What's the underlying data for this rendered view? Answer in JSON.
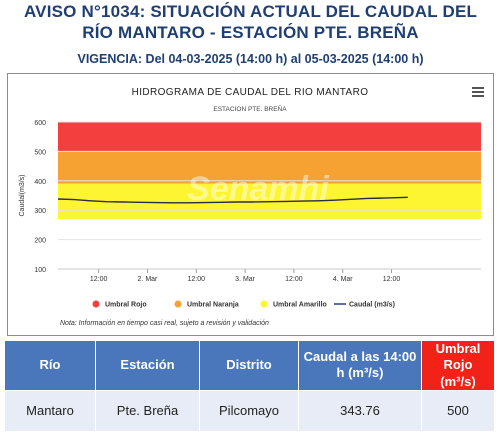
{
  "header": {
    "line1": "AVISO N°1034: SITUACIÓN ACTUAL DEL CAUDAL DEL",
    "line2": "RÍO MANTARO - ESTACIÓN PTE. BREÑA",
    "vigencia": "VIGENCIA: Del 04-03-2025 (14:00 h) al 05-03-2025 (14:00 h)"
  },
  "watermark": "Senamhi",
  "chart_data": {
    "type": "line",
    "title": "HIDROGRAMA DE CAUDAL DEL RIO MANTARO",
    "subtitle": "ESTACION PTE. BREÑA",
    "ylabel": "Caudal(m3/s)",
    "ylim": [
      100,
      600
    ],
    "yticks": [
      100,
      200,
      300,
      400,
      500,
      600
    ],
    "x_range_hours": [
      -10,
      94
    ],
    "xticks": [
      {
        "h": 0,
        "label": "12:00"
      },
      {
        "h": 12,
        "label": "2. Mar"
      },
      {
        "h": 24,
        "label": "12:00"
      },
      {
        "h": 36,
        "label": "3. Mar"
      },
      {
        "h": 48,
        "label": "12:00"
      },
      {
        "h": 60,
        "label": "4. Mar"
      },
      {
        "h": 72,
        "label": "12:00"
      }
    ],
    "bands": [
      {
        "name": "Umbral Rojo",
        "from": 500,
        "to": 600,
        "color": "#f43f3f"
      },
      {
        "name": "Umbral Naranja",
        "from": 390,
        "to": 500,
        "color": "#f6a233"
      },
      {
        "name": "Umbral Amarillo",
        "from": 270,
        "to": 390,
        "color": "#fdf531"
      }
    ],
    "series": [
      {
        "name": "Caudal (m3/s)",
        "color": "#2a2a4a",
        "x": [
          -10,
          -6,
          -2,
          2,
          6,
          10,
          14,
          18,
          22,
          26,
          30,
          34,
          38,
          42,
          46,
          50,
          54,
          58,
          62,
          66,
          70,
          74,
          76
        ],
        "y": [
          338,
          336,
          332,
          329,
          328,
          327,
          326,
          325,
          325,
          326,
          327,
          328,
          328,
          329,
          330,
          331,
          332,
          334,
          337,
          340,
          341,
          343,
          344
        ]
      }
    ],
    "legend": [
      {
        "label": "Umbral Rojo",
        "color": "#f43f3f",
        "kind": "dot"
      },
      {
        "label": "Umbral Naranja",
        "color": "#f6a233",
        "kind": "dot"
      },
      {
        "label": "Umbral Amarillo",
        "color": "#fdf531",
        "kind": "dot"
      },
      {
        "label": "Caudal (m3/s)",
        "color": "#2b3a8a",
        "kind": "line"
      }
    ],
    "note": "Nota: Información en tiempo casi real, sujeto a revisión y validación"
  },
  "table": {
    "headers": [
      "Río",
      "Estación",
      "Distrito",
      "Caudal a las 14:00 h (m³/s)",
      "Umbral Rojo (m³/s)"
    ],
    "row": [
      "Mantaro",
      "Pte. Breña",
      "Pilcomayo",
      "343.76",
      "500"
    ]
  }
}
